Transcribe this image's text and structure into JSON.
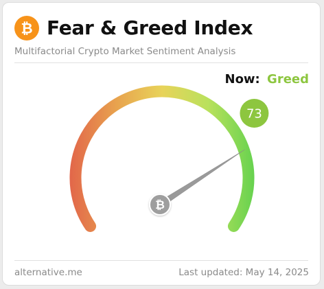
{
  "header": {
    "title": "Fear & Greed Index",
    "subtitle": "Multifactorial Crypto Market Sentiment Analysis",
    "logo_icon": "bitcoin-icon"
  },
  "now": {
    "label": "Now:",
    "value": "Greed"
  },
  "gauge": {
    "value": 73,
    "value_text": "73",
    "min": 0,
    "max": 100,
    "badge_color": "#8dc63f",
    "hub_icon": "bitcoin-icon",
    "gradient_colors": [
      "#e2664a",
      "#e8a24e",
      "#e8d35a",
      "#b9e15c",
      "#66d24f"
    ]
  },
  "footer": {
    "source": "alternative.me",
    "updated_label": "Last updated:",
    "updated_date": "May 14, 2025"
  },
  "colors": {
    "bitcoin_orange": "#f7931a",
    "greed_green": "#8dc63f"
  }
}
